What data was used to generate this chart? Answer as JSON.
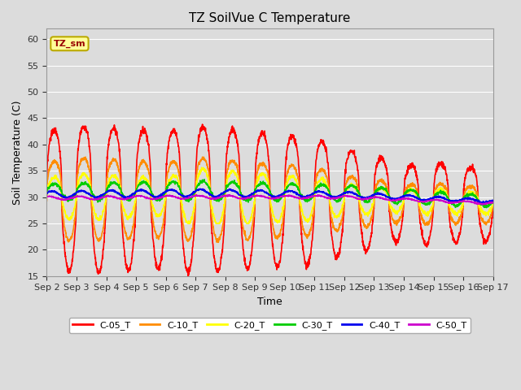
{
  "title": "TZ SoilVue C Temperature",
  "xlabel": "Time",
  "ylabel": "Soil Temperature (C)",
  "ylim": [
    15,
    62
  ],
  "yticks": [
    15,
    20,
    25,
    30,
    35,
    40,
    45,
    50,
    55,
    60
  ],
  "fig_bg": "#dcdcdc",
  "plot_bg": "#dcdcdc",
  "series": {
    "C-05_T": {
      "color": "#ff0000",
      "lw": 1.2
    },
    "C-10_T": {
      "color": "#ff8c00",
      "lw": 1.2
    },
    "C-20_T": {
      "color": "#ffff00",
      "lw": 1.2
    },
    "C-30_T": {
      "color": "#00cc00",
      "lw": 1.2
    },
    "C-40_T": {
      "color": "#0000ee",
      "lw": 1.2
    },
    "C-50_T": {
      "color": "#cc00cc",
      "lw": 1.2
    }
  },
  "annotation_text": "TZ_sm",
  "annotation_bg": "#ffff99",
  "annotation_border": "#bbaa00",
  "days": 15,
  "pts_per_day": 144,
  "grid_color": "#ffffff",
  "tick_fontsize": 8,
  "label_fontsize": 9,
  "title_fontsize": 11
}
